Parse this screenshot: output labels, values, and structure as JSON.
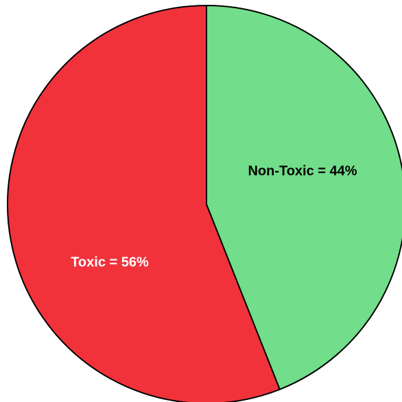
{
  "chart_data": {
    "type": "pie",
    "title": "",
    "slices": [
      {
        "label": "Non-Toxic",
        "value": 44,
        "color": "#72dd8a",
        "label_text": "Non-Toxic = 44%",
        "label_color": "#000000"
      },
      {
        "label": "Toxic",
        "value": 56,
        "color": "#f1323b",
        "label_text": "Toxic = 56%",
        "label_color": "#ffffff"
      }
    ],
    "start_angle": "12 o'clock",
    "direction": "clockwise",
    "legend": "none"
  }
}
